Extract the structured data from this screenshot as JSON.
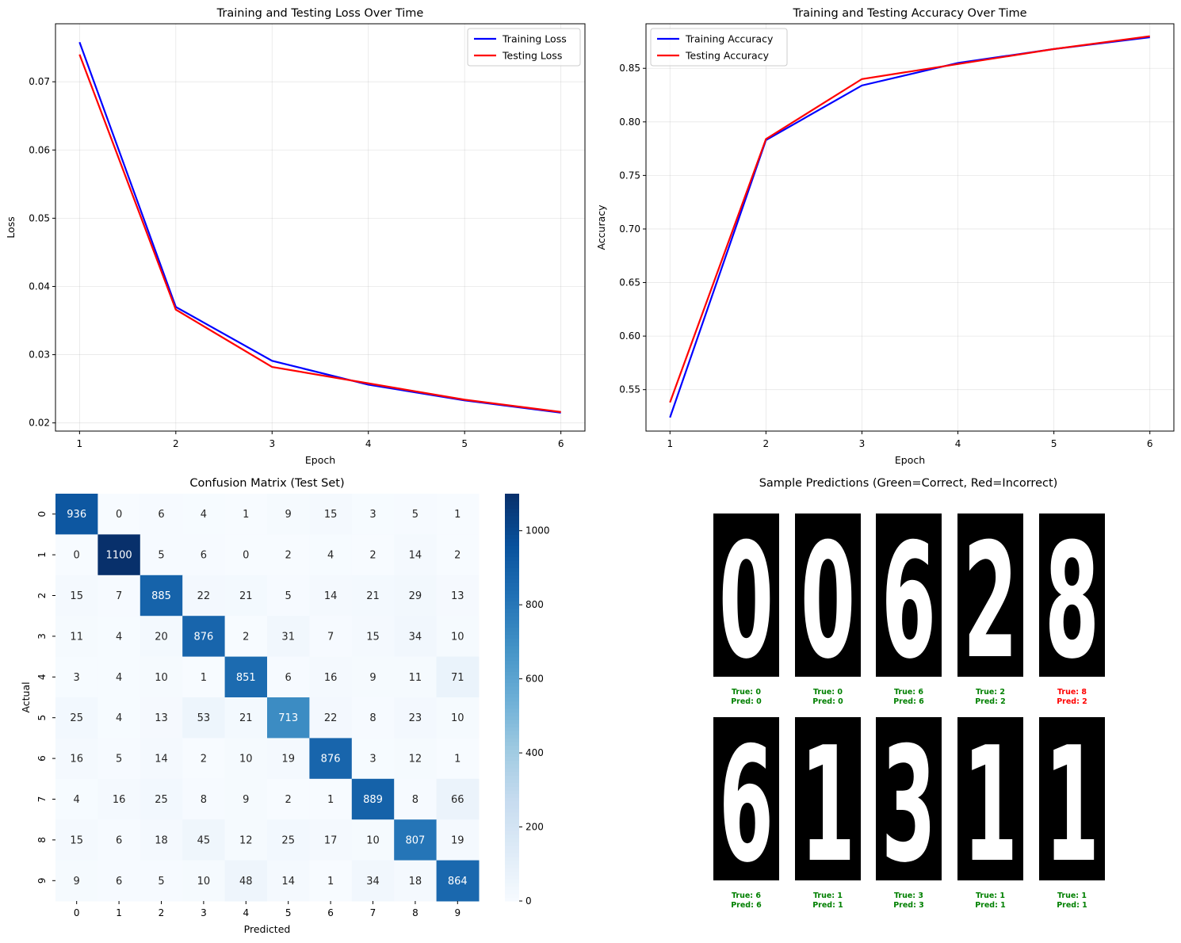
{
  "chart_data": [
    {
      "type": "line",
      "title": "Training and Testing Loss Over Time",
      "xlabel": "Epoch",
      "ylabel": "Loss",
      "x": [
        1,
        2,
        3,
        4,
        5,
        6
      ],
      "xticks": [
        1,
        2,
        3,
        4,
        5,
        6
      ],
      "yticks": [
        "0.02",
        "0.03",
        "0.04",
        "0.05",
        "0.06",
        "0.07"
      ],
      "xlim": [
        0.75,
        6.25
      ],
      "ylim": [
        0.0188,
        0.0785
      ],
      "grid": true,
      "legend": "upper-right",
      "series": [
        {
          "name": "Training Loss",
          "color": "#0000ff",
          "values": [
            0.0758,
            0.037,
            0.0291,
            0.0256,
            0.0233,
            0.0215
          ]
        },
        {
          "name": "Testing Loss",
          "color": "#ff0000",
          "values": [
            0.074,
            0.0366,
            0.0282,
            0.0258,
            0.0234,
            0.0216
          ]
        }
      ]
    },
    {
      "type": "line",
      "title": "Training and Testing Accuracy Over Time",
      "xlabel": "Epoch",
      "ylabel": "Accuracy",
      "x": [
        1,
        2,
        3,
        4,
        5,
        6
      ],
      "xticks": [
        1,
        2,
        3,
        4,
        5,
        6
      ],
      "yticks": [
        "0.55",
        "0.60",
        "0.65",
        "0.70",
        "0.75",
        "0.80",
        "0.85"
      ],
      "xlim": [
        0.75,
        6.25
      ],
      "ylim": [
        0.5113,
        0.8916
      ],
      "grid": true,
      "legend": "upper-left",
      "series": [
        {
          "name": "Training Accuracy",
          "color": "#0000ff",
          "values": [
            0.524,
            0.783,
            0.834,
            0.855,
            0.868,
            0.879
          ]
        },
        {
          "name": "Testing Accuracy",
          "color": "#ff0000",
          "values": [
            0.538,
            0.784,
            0.84,
            0.854,
            0.868,
            0.88
          ]
        }
      ]
    },
    {
      "type": "heatmap",
      "title": "Confusion Matrix (Test Set)",
      "xlabel": "Predicted",
      "ylabel": "Actual",
      "labels": [
        "0",
        "1",
        "2",
        "3",
        "4",
        "5",
        "6",
        "7",
        "8",
        "9"
      ],
      "colormap": "Blues",
      "vmin": 0,
      "vmax": 1100,
      "colorbar_ticks": [
        "0",
        "200",
        "400",
        "600",
        "800",
        "1000"
      ],
      "matrix": [
        [
          936,
          0,
          6,
          4,
          1,
          9,
          15,
          3,
          5,
          1
        ],
        [
          0,
          1100,
          5,
          6,
          0,
          2,
          4,
          2,
          14,
          2
        ],
        [
          15,
          7,
          885,
          22,
          21,
          5,
          14,
          21,
          29,
          13
        ],
        [
          11,
          4,
          20,
          876,
          2,
          31,
          7,
          15,
          34,
          10
        ],
        [
          3,
          4,
          10,
          1,
          851,
          6,
          16,
          9,
          11,
          71
        ],
        [
          25,
          4,
          13,
          53,
          21,
          713,
          22,
          8,
          23,
          10
        ],
        [
          16,
          5,
          14,
          2,
          10,
          19,
          876,
          3,
          12,
          1
        ],
        [
          4,
          16,
          25,
          8,
          9,
          2,
          1,
          889,
          8,
          66
        ],
        [
          15,
          6,
          18,
          45,
          12,
          25,
          17,
          10,
          807,
          19
        ],
        [
          9,
          6,
          5,
          10,
          48,
          14,
          1,
          34,
          18,
          864
        ]
      ]
    }
  ],
  "samples": {
    "title": "Sample Predictions (Green=Correct, Red=Incorrect)",
    "correct_color": "#008000",
    "incorrect_color": "#ff0000",
    "items": [
      {
        "image_digit": "0",
        "true": "True: 0",
        "pred": "Pred: 0",
        "correct": true
      },
      {
        "image_digit": "0",
        "true": "True: 0",
        "pred": "Pred: 0",
        "correct": true
      },
      {
        "image_digit": "6",
        "true": "True: 6",
        "pred": "Pred: 6",
        "correct": true
      },
      {
        "image_digit": "2",
        "true": "True: 2",
        "pred": "Pred: 2",
        "correct": true
      },
      {
        "image_digit": "8",
        "true": "True: 8",
        "pred": "Pred: 2",
        "correct": false
      },
      {
        "image_digit": "6",
        "true": "True: 6",
        "pred": "Pred: 6",
        "correct": true
      },
      {
        "image_digit": "1",
        "true": "True: 1",
        "pred": "Pred: 1",
        "correct": true
      },
      {
        "image_digit": "3",
        "true": "True: 3",
        "pred": "Pred: 3",
        "correct": true
      },
      {
        "image_digit": "1",
        "true": "True: 1",
        "pred": "Pred: 1",
        "correct": true
      },
      {
        "image_digit": "1",
        "true": "True: 1",
        "pred": "Pred: 1",
        "correct": true
      }
    ]
  }
}
